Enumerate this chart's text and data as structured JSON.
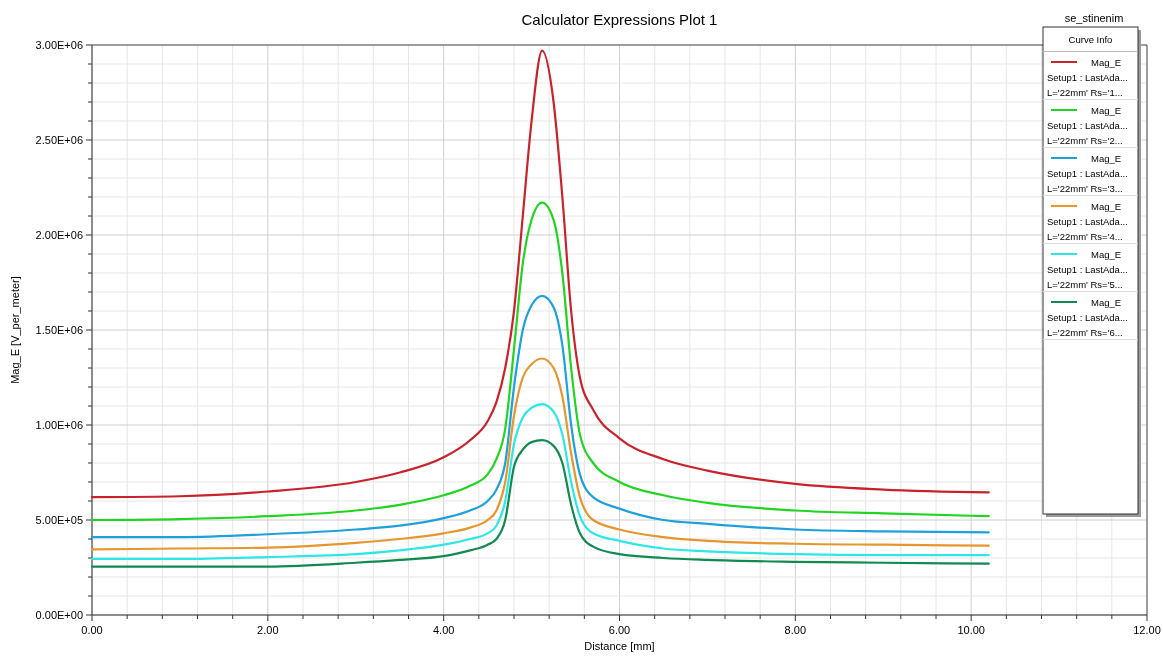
{
  "chart_data": {
    "type": "line",
    "title": "Calculator Expressions Plot 1",
    "xlabel": "Distance [mm]",
    "ylabel": "Mag_E [V_per_meter]",
    "legend_title": "Curve Info",
    "annotations": [
      "se_stinenim"
    ],
    "grid": true,
    "legend": "top right",
    "marker": "none",
    "line_style": "solid",
    "xlim": [
      0,
      12
    ],
    "ylim": [
      0,
      3000000
    ],
    "xticks": [
      {
        "value": 0,
        "label": "0.00"
      },
      {
        "value": 0.4,
        "label": null
      },
      {
        "value": 0.8,
        "label": null
      },
      {
        "value": 1.2,
        "label": null
      },
      {
        "value": 1.6,
        "label": null
      },
      {
        "value": 2,
        "label": "2.00"
      },
      {
        "value": 2.4,
        "label": null
      },
      {
        "value": 2.8,
        "label": null
      },
      {
        "value": 3.2,
        "label": null
      },
      {
        "value": 3.6,
        "label": null
      },
      {
        "value": 4,
        "label": "4.00"
      },
      {
        "value": 4.4,
        "label": null
      },
      {
        "value": 4.8,
        "label": null
      },
      {
        "value": 5.2,
        "label": null
      },
      {
        "value": 5.6,
        "label": null
      },
      {
        "value": 6,
        "label": "6.00"
      },
      {
        "value": 6.4,
        "label": null
      },
      {
        "value": 6.8,
        "label": null
      },
      {
        "value": 7.2,
        "label": null
      },
      {
        "value": 7.6,
        "label": null
      },
      {
        "value": 8,
        "label": "8.00"
      },
      {
        "value": 8.4,
        "label": null
      },
      {
        "value": 8.8,
        "label": null
      },
      {
        "value": 9.2,
        "label": null
      },
      {
        "value": 9.6,
        "label": null
      },
      {
        "value": 10,
        "label": "10.00"
      },
      {
        "value": 10.4,
        "label": null
      },
      {
        "value": 10.8,
        "label": null
      },
      {
        "value": 11.2,
        "label": null
      },
      {
        "value": 11.6,
        "label": null
      },
      {
        "value": 12,
        "label": "12.00"
      }
    ],
    "yticks": [
      {
        "value": 0,
        "label": "0.00E+00"
      },
      {
        "value": 100000,
        "label": null
      },
      {
        "value": 200000,
        "label": null
      },
      {
        "value": 300000,
        "label": null
      },
      {
        "value": 400000,
        "label": null
      },
      {
        "value": 500000,
        "label": "5.00E+05"
      },
      {
        "value": 600000,
        "label": null
      },
      {
        "value": 700000,
        "label": null
      },
      {
        "value": 800000,
        "label": null
      },
      {
        "value": 900000,
        "label": null
      },
      {
        "value": 1000000,
        "label": "1.00E+06"
      },
      {
        "value": 1100000,
        "label": null
      },
      {
        "value": 1200000,
        "label": null
      },
      {
        "value": 1300000,
        "label": null
      },
      {
        "value": 1400000,
        "label": null
      },
      {
        "value": 1500000,
        "label": "1.50E+06"
      },
      {
        "value": 1600000,
        "label": null
      },
      {
        "value": 1700000,
        "label": null
      },
      {
        "value": 1800000,
        "label": null
      },
      {
        "value": 1900000,
        "label": null
      },
      {
        "value": 2000000,
        "label": "2.00E+06"
      },
      {
        "value": 2100000,
        "label": null
      },
      {
        "value": 2200000,
        "label": null
      },
      {
        "value": 2300000,
        "label": null
      },
      {
        "value": 2400000,
        "label": null
      },
      {
        "value": 2500000,
        "label": "2.50E+06"
      },
      {
        "value": 2600000,
        "label": null
      },
      {
        "value": 2700000,
        "label": null
      },
      {
        "value": 2800000,
        "label": null
      },
      {
        "value": 2900000,
        "label": null
      },
      {
        "value": 3000000,
        "label": "3.00E+06"
      }
    ],
    "x": [
      0,
      1,
      2,
      3,
      3.5,
      4,
      4.3,
      4.5,
      4.6,
      4.7,
      4.8,
      4.9,
      5.0,
      5.12,
      5.25,
      5.35,
      5.45,
      5.55,
      5.7,
      6,
      6.5,
      7,
      8,
      9,
      10.2
    ],
    "series": [
      {
        "name": "Mag_E\nSetup1 : LastAda...\nL='22mm' Rs='1...",
        "color": "#c8232c",
        "values": [
          620000,
          625000,
          650000,
          700000,
          750000,
          830000,
          920000,
          1020000,
          1120000,
          1300000,
          1600000,
          2100000,
          2600000,
          2970000,
          2700000,
          2200000,
          1600000,
          1250000,
          1080000,
          930000,
          820000,
          760000,
          690000,
          660000,
          645000
        ]
      },
      {
        "name": "Mag_E\nSetup1 : LastAda...\nL='22mm' Rs='2...",
        "color": "#22d422",
        "values": [
          500000,
          505000,
          520000,
          550000,
          580000,
          630000,
          680000,
          740000,
          820000,
          980000,
          1400000,
          1850000,
          2080000,
          2170000,
          2080000,
          1800000,
          1300000,
          950000,
          800000,
          700000,
          630000,
          590000,
          550000,
          535000,
          520000
        ]
      },
      {
        "name": "Mag_E\nSetup1 : LastAda...\nL='22mm' Rs='3...",
        "color": "#1ea0dc",
        "values": [
          410000,
          410000,
          425000,
          450000,
          470000,
          510000,
          550000,
          600000,
          660000,
          800000,
          1200000,
          1500000,
          1630000,
          1680000,
          1620000,
          1420000,
          1000000,
          740000,
          620000,
          560000,
          500000,
          480000,
          450000,
          440000,
          435000
        ]
      },
      {
        "name": "Mag_E\nSetup1 : LastAda...\nL='22mm' Rs='4...",
        "color": "#e6962d",
        "values": [
          345000,
          350000,
          355000,
          380000,
          400000,
          430000,
          460000,
          500000,
          550000,
          700000,
          1050000,
          1250000,
          1320000,
          1350000,
          1300000,
          1150000,
          850000,
          620000,
          500000,
          450000,
          410000,
          390000,
          375000,
          370000,
          365000
        ]
      },
      {
        "name": "Mag_E\nSetup1 : LastAda...\nL='22mm' Rs='5...",
        "color": "#2ee6e6",
        "values": [
          295000,
          295000,
          305000,
          320000,
          340000,
          370000,
          400000,
          430000,
          470000,
          600000,
          900000,
          1040000,
          1090000,
          1110000,
          1070000,
          950000,
          700000,
          520000,
          430000,
          390000,
          350000,
          335000,
          320000,
          315000,
          315000
        ]
      },
      {
        "name": "Mag_E\nSetup1 : LastAda...\nL='22mm' Rs='6...",
        "color": "#108a50",
        "values": [
          255000,
          255000,
          255000,
          275000,
          290000,
          310000,
          340000,
          370000,
          400000,
          500000,
          780000,
          870000,
          910000,
          920000,
          890000,
          800000,
          580000,
          430000,
          360000,
          320000,
          300000,
          290000,
          280000,
          275000,
          270000
        ]
      }
    ]
  }
}
